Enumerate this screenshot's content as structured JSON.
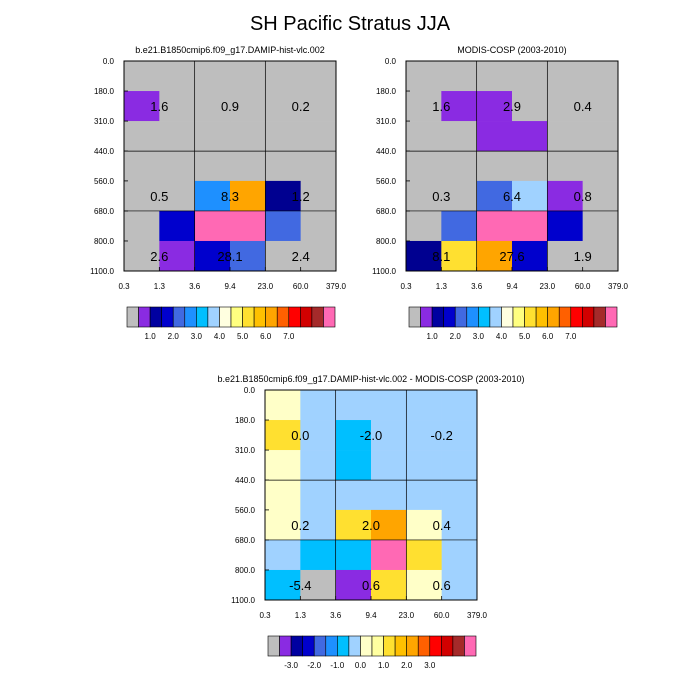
{
  "title": "SH Pacific Stratus JJA",
  "colors": {
    "abs_scale": [
      "#bebebe",
      "#8a2be2",
      "#0000a0",
      "#0000cd",
      "#4169e1",
      "#1e90ff",
      "#00bfff",
      "#a0d2ff",
      "#ffffe0",
      "#ffff80",
      "#ffe030",
      "#ffc000",
      "#ffa500",
      "#ff6000",
      "#ff0000",
      "#d20000",
      "#a52a2a",
      "#ff69b4"
    ],
    "diff_scale": [
      "#bebebe",
      "#8a2be2",
      "#0000a0",
      "#0000cd",
      "#4169e1",
      "#1e90ff",
      "#00bfff",
      "#a0d2ff",
      "#ffffc8",
      "#ffffa0",
      "#ffe030",
      "#ffc000",
      "#ffa500",
      "#ff6000",
      "#ff0000",
      "#d20000",
      "#a52a2a",
      "#ff69b4"
    ]
  },
  "chart_data": [
    {
      "type": "heatmap",
      "title": "b.e21.B1850cmip6.f09_g17.DAMIP-hist-vlc.002",
      "x_ticks": [
        "0.3",
        "1.3",
        "3.6",
        "9.4",
        "23.0",
        "60.0",
        "379.0"
      ],
      "y_ticks": [
        "0.0",
        "180.0",
        "310.0",
        "440.0",
        "560.0",
        "680.0",
        "800.0",
        "1100.0"
      ],
      "cell_colors": [
        [
          "gray",
          "gray",
          "gray",
          "gray",
          "gray",
          "gray"
        ],
        [
          "violet",
          "gray",
          "gray",
          "gray",
          "gray",
          "gray"
        ],
        [
          "gray",
          "gray",
          "gray",
          "gray",
          "gray",
          "gray"
        ],
        [
          "gray",
          "gray",
          "gray",
          "gray",
          "gray",
          "gray"
        ],
        [
          "gray",
          "gray",
          "dodgerblue",
          "orange",
          "navy",
          "gray"
        ],
        [
          "gray",
          "blue",
          "pink",
          "pink",
          "royalblue",
          "gray"
        ],
        [
          "gray",
          "violet",
          "blue",
          "royalblue",
          "gray",
          "gray"
        ]
      ],
      "box_labels": [
        [
          "1.6",
          "0.9",
          "0.2"
        ],
        [
          "0.5",
          "8.3",
          "1.2"
        ],
        [
          "2.6",
          "28.1",
          "2.4"
        ]
      ],
      "colorbar_labels": [
        "1.0",
        "2.0",
        "3.0",
        "4.0",
        "5.0",
        "6.0",
        "7.0"
      ]
    },
    {
      "type": "heatmap",
      "title": "MODIS-COSP (2003-2010)",
      "x_ticks": [
        "0.3",
        "1.3",
        "3.6",
        "9.4",
        "23.0",
        "60.0",
        "379.0"
      ],
      "y_ticks": [
        "0.0",
        "180.0",
        "310.0",
        "440.0",
        "560.0",
        "680.0",
        "800.0",
        "1100.0"
      ],
      "cell_colors": [
        [
          "gray",
          "gray",
          "gray",
          "gray",
          "gray",
          "gray"
        ],
        [
          "gray",
          "violet",
          "violet",
          "gray",
          "gray",
          "gray"
        ],
        [
          "gray",
          "gray",
          "violet",
          "violet",
          "gray",
          "gray"
        ],
        [
          "gray",
          "gray",
          "gray",
          "gray",
          "gray",
          "gray"
        ],
        [
          "gray",
          "gray",
          "royalblue",
          "lightblue",
          "violet",
          "gray"
        ],
        [
          "gray",
          "royalblue",
          "pink",
          "pink",
          "blue",
          "gray"
        ],
        [
          "navy",
          "gold",
          "orange",
          "blue",
          "gray",
          "gray"
        ]
      ],
      "box_labels": [
        [
          "1.6",
          "2.9",
          "0.4"
        ],
        [
          "0.3",
          "6.4",
          "0.8"
        ],
        [
          "8.1",
          "27.6",
          "1.9"
        ]
      ],
      "colorbar_labels": [
        "1.0",
        "2.0",
        "3.0",
        "4.0",
        "5.0",
        "6.0",
        "7.0"
      ]
    },
    {
      "type": "heatmap",
      "title": "b.e21.B1850cmip6.f09_g17.DAMIP-hist-vlc.002 - MODIS-COSP (2003-2010)",
      "x_ticks": [
        "0.3",
        "1.3",
        "3.6",
        "9.4",
        "23.0",
        "60.0",
        "379.0"
      ],
      "y_ticks": [
        "0.0",
        "180.0",
        "310.0",
        "440.0",
        "560.0",
        "680.0",
        "800.0",
        "1100.0"
      ],
      "cell_colors": [
        [
          "cream",
          "lightblue",
          "lightblue",
          "lightblue",
          "lightblue",
          "lightblue"
        ],
        [
          "gold",
          "lightblue",
          "skyblue",
          "lightblue",
          "lightblue",
          "lightblue"
        ],
        [
          "cream",
          "lightblue",
          "skyblue",
          "lightblue",
          "lightblue",
          "lightblue"
        ],
        [
          "cream",
          "lightblue",
          "lightblue",
          "lightblue",
          "lightblue",
          "lightblue"
        ],
        [
          "cream",
          "lightblue",
          "gold",
          "orange",
          "cream",
          "lightblue"
        ],
        [
          "lightblue",
          "skyblue",
          "skyblue",
          "pink",
          "gold",
          "lightblue"
        ],
        [
          "skyblue",
          "gray",
          "violet",
          "gold",
          "cream",
          "lightblue"
        ]
      ],
      "box_labels": [
        [
          "0.0",
          "-2.0",
          "-0.2"
        ],
        [
          "0.2",
          "2.0",
          "0.4"
        ],
        [
          "-5.4",
          "0.6",
          "0.6"
        ]
      ],
      "colorbar_labels": [
        "-3.0",
        "-2.0",
        "-1.0",
        "0.0",
        "1.0",
        "2.0",
        "3.0"
      ]
    }
  ]
}
